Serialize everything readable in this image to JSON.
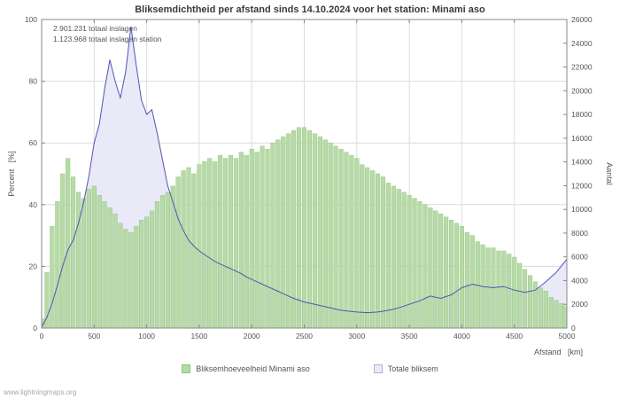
{
  "page": {
    "watermark": "www.lightningmaps.org"
  },
  "chart_data": {
    "type": "area",
    "title": "Bliksemdichtheid per afstand sinds 14.10.2024 voor het station: Minami aso",
    "annotations": [
      "2.901.231 totaal inslagen",
      "1.123.968 totaal inslagen station"
    ],
    "xlabel": "Afstand   [km]",
    "ylabel_left": "Percent   [%]",
    "ylabel_right": "Aantal",
    "xlim": [
      0,
      5000
    ],
    "ylim_left": [
      0,
      100
    ],
    "ylim_right": [
      0,
      26000
    ],
    "x_ticks": [
      0,
      500,
      1000,
      1500,
      2000,
      2500,
      3000,
      3500,
      4000,
      4500,
      5000
    ],
    "y_ticks_left": [
      0,
      20,
      40,
      60,
      80,
      100
    ],
    "y_ticks_right": [
      0,
      2000,
      4000,
      6000,
      8000,
      10000,
      12000,
      14000,
      16000,
      18000,
      20000,
      22000,
      24000,
      26000
    ],
    "grid": true,
    "legend_position": "bottom",
    "x": [
      0,
      50,
      100,
      150,
      200,
      250,
      300,
      350,
      400,
      450,
      500,
      550,
      600,
      650,
      700,
      750,
      800,
      850,
      900,
      950,
      1000,
      1050,
      1100,
      1150,
      1200,
      1250,
      1300,
      1350,
      1400,
      1450,
      1500,
      1550,
      1600,
      1650,
      1700,
      1750,
      1800,
      1850,
      1900,
      1950,
      2000,
      2050,
      2100,
      2150,
      2200,
      2250,
      2300,
      2350,
      2400,
      2450,
      2500,
      2550,
      2600,
      2650,
      2700,
      2750,
      2800,
      2850,
      2900,
      2950,
      3000,
      3050,
      3100,
      3150,
      3200,
      3250,
      3300,
      3350,
      3400,
      3450,
      3500,
      3550,
      3600,
      3650,
      3700,
      3750,
      3800,
      3850,
      3900,
      3950,
      4000,
      4050,
      4100,
      4150,
      4200,
      4250,
      4300,
      4350,
      4400,
      4450,
      4500,
      4550,
      4600,
      4650,
      4700,
      4750,
      4800,
      4850,
      4900,
      4950,
      5000
    ],
    "series": [
      {
        "name": "Bliksemhoeveelheid Minami aso",
        "type": "bar",
        "axis": "left",
        "unit": "percent",
        "color": "#b7dba6",
        "stroke": "#8fbf7f",
        "values": [
          3,
          18,
          33,
          41,
          50,
          55,
          49,
          44,
          42,
          45,
          46,
          43,
          41,
          39,
          37,
          34,
          32,
          31,
          33,
          35,
          36,
          38,
          41,
          43,
          44,
          46,
          49,
          51,
          52,
          50,
          53,
          54,
          55,
          54,
          56,
          55,
          56,
          55,
          57,
          56,
          58,
          57,
          59,
          58,
          60,
          61,
          62,
          63,
          64,
          65,
          65,
          64,
          63,
          62,
          61,
          60,
          59,
          58,
          57,
          56,
          55,
          53,
          52,
          51,
          50,
          49,
          47,
          46,
          45,
          44,
          43,
          42,
          41,
          40,
          39,
          38,
          37,
          36,
          35,
          34,
          33,
          31,
          30,
          28,
          27,
          26,
          26,
          25,
          25,
          24,
          23,
          21,
          19,
          17,
          15,
          13,
          12,
          10,
          9,
          8,
          7
        ]
      },
      {
        "name": "Totale bliksem",
        "type": "area",
        "axis": "right",
        "unit": "count",
        "color": "#e9e9f8",
        "line_color": "#5353b5",
        "values": [
          100,
          900,
          2100,
          3600,
          5200,
          6600,
          7400,
          8800,
          10600,
          12800,
          15600,
          17200,
          20200,
          22600,
          20800,
          19400,
          21600,
          25400,
          22200,
          19200,
          18000,
          18400,
          16400,
          14200,
          12000,
          10600,
          9200,
          8200,
          7400,
          6900,
          6500,
          6200,
          5900,
          5600,
          5400,
          5200,
          5000,
          4800,
          4600,
          4300,
          4100,
          3900,
          3700,
          3500,
          3300,
          3100,
          2900,
          2700,
          2500,
          2350,
          2200,
          2100,
          2000,
          1900,
          1800,
          1700,
          1600,
          1500,
          1450,
          1400,
          1350,
          1320,
          1300,
          1320,
          1350,
          1420,
          1500,
          1600,
          1700,
          1850,
          2000,
          2150,
          2300,
          2500,
          2700,
          2600,
          2500,
          2650,
          2800,
          3100,
          3400,
          3550,
          3700,
          3600,
          3500,
          3450,
          3400,
          3450,
          3500,
          3350,
          3200,
          3100,
          3000,
          3100,
          3200,
          3550,
          3900,
          4300,
          4700,
          5250,
          5800
        ]
      }
    ]
  },
  "colors": {
    "grid": "#dcdcdc",
    "axis": "#888888",
    "tick_text": "#555555",
    "title_text": "#3a3a3a"
  }
}
